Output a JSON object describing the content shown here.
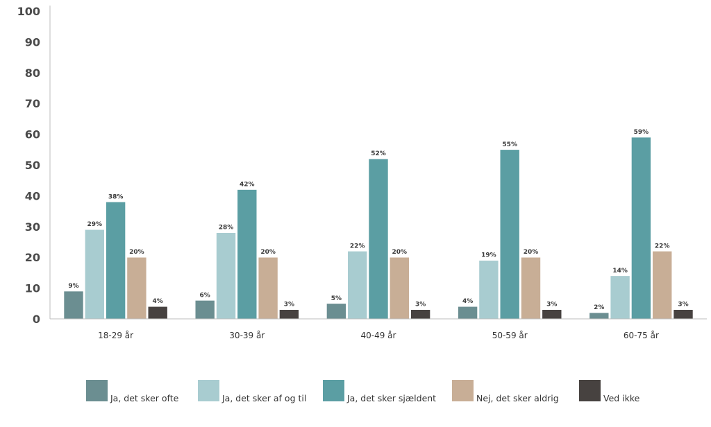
{
  "chart_data": {
    "type": "bar",
    "title": "",
    "xlabel": "",
    "ylabel": "",
    "ylim": [
      0,
      100
    ],
    "yticks": [
      0,
      10,
      20,
      30,
      40,
      50,
      60,
      70,
      80,
      90,
      100
    ],
    "grid": false,
    "legend_position": "bottom",
    "categories": [
      "18-29 år",
      "30-39 år",
      "40-49 år",
      "50-59 år",
      "60-75 år"
    ],
    "series": [
      {
        "name": "Ja, det sker ofte",
        "color": "#6b8e91",
        "values": [
          9,
          6,
          5,
          4,
          2
        ],
        "labels": [
          "9%",
          "6%",
          "5%",
          "4%",
          "2%"
        ]
      },
      {
        "name": "Ja, det sker af og til",
        "color": "#a8ccd0",
        "values": [
          29,
          28,
          22,
          19,
          14
        ],
        "labels": [
          "29%",
          "28%",
          "22%",
          "19%",
          "14%"
        ]
      },
      {
        "name": "Ja, det sker sjældent",
        "color": "#5b9ea3",
        "values": [
          38,
          42,
          52,
          55,
          59
        ],
        "labels": [
          "38%",
          "42%",
          "52%",
          "55%",
          "59%"
        ]
      },
      {
        "name": "Nej, det sker aldrig",
        "color": "#c8ae96",
        "values": [
          20,
          20,
          20,
          20,
          22
        ],
        "labels": [
          "20%",
          "20%",
          "20%",
          "20%",
          "22%"
        ]
      },
      {
        "name": "Ved ikke",
        "color": "#474240",
        "values": [
          4,
          3,
          3,
          3,
          3
        ],
        "labels": [
          "4%",
          "3%",
          "3%",
          "3%",
          "3%"
        ]
      }
    ]
  }
}
